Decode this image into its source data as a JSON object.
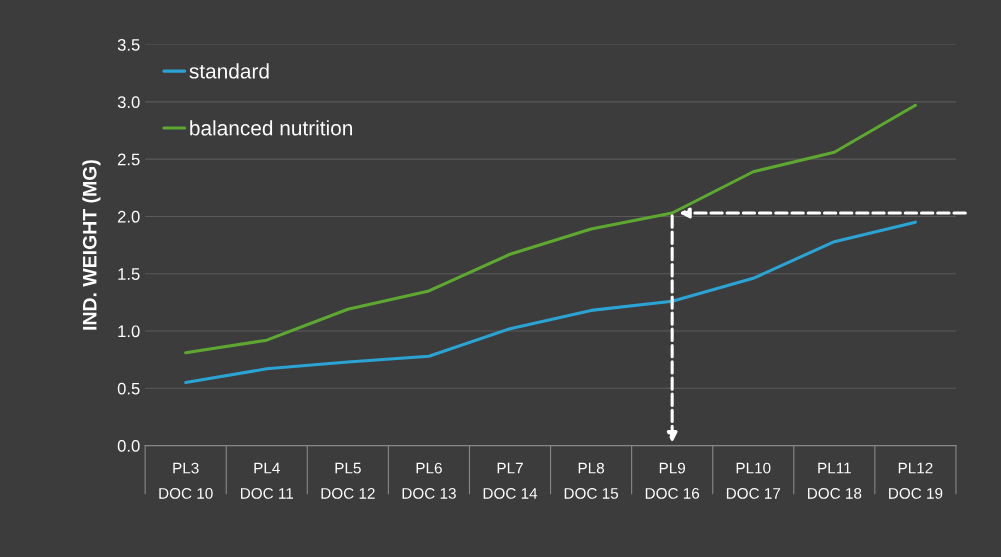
{
  "chart_data": {
    "type": "line",
    "ylabel": "IND. WEIGHT (MG)",
    "categories": [
      "PL3\nDOC 10",
      "PL4\nDOC 11",
      "PL5\nDOC 12",
      "PL6\nDOC 13",
      "PL7\nDOC 14",
      "PL8\nDOC 15",
      "PL9\nDOC 16",
      "PL10\nDOC 17",
      "PL11\nDOC 18",
      "PL12\nDOC 19"
    ],
    "series": [
      {
        "name": "standard",
        "color": "#2ba3d4",
        "values": [
          0.55,
          0.67,
          0.73,
          0.78,
          1.02,
          1.18,
          1.26,
          1.46,
          1.78,
          1.95
        ]
      },
      {
        "name": "balanced nutrition",
        "color": "#5ea832",
        "values": [
          0.81,
          0.92,
          1.19,
          1.35,
          1.67,
          1.89,
          2.03,
          2.39,
          2.56,
          2.97
        ]
      }
    ],
    "ylim": [
      0,
      3.5
    ],
    "yticks": [
      {
        "value": 0,
        "label": "0.0"
      },
      {
        "value": 0.5,
        "label": "0.5"
      },
      {
        "value": 1,
        "label": "1.0"
      },
      {
        "value": 1.5,
        "label": "1.5"
      },
      {
        "value": 2,
        "label": "2.0"
      },
      {
        "value": 2.5,
        "label": "2.5"
      },
      {
        "value": 3,
        "label": "3.0"
      },
      {
        "value": 3.5,
        "label": "3.5"
      }
    ],
    "grid": "y",
    "legend": "top left",
    "marker": "none",
    "line_style": "solid"
  }
}
